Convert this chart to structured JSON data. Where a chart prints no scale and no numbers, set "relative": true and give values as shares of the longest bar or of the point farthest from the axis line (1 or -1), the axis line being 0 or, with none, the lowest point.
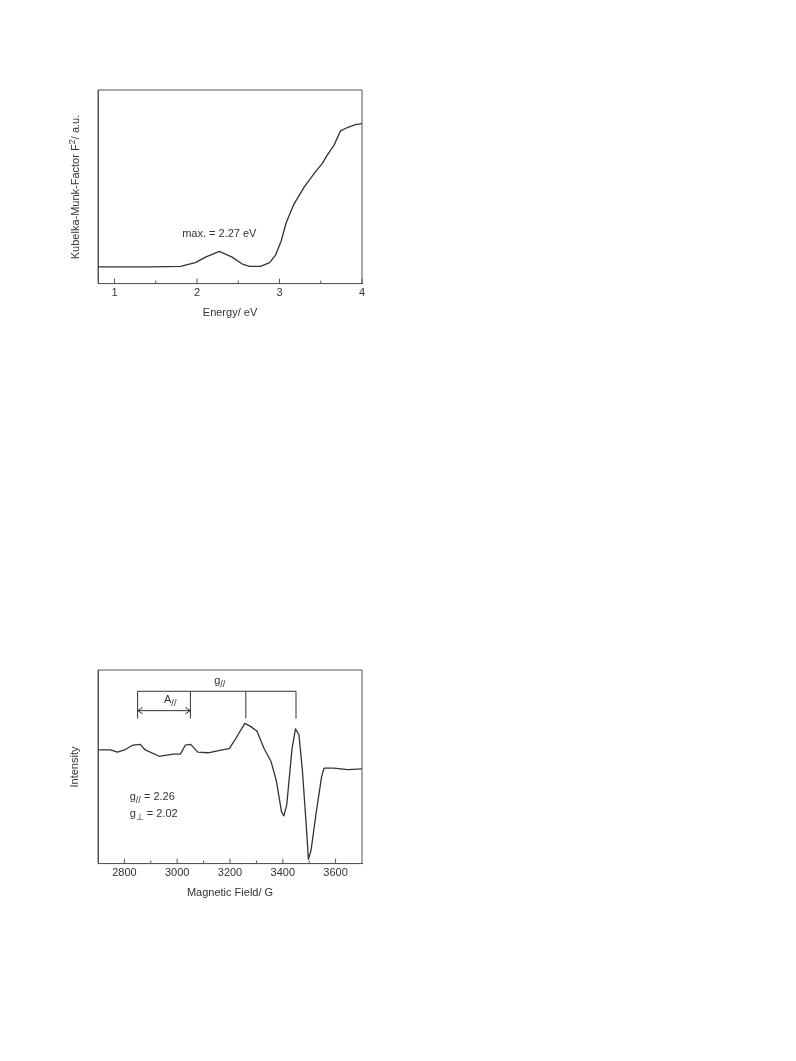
{
  "chart_data": [
    {
      "type": "line",
      "xlabel": "Energy/ eV",
      "ylabel": "Kubelka-Munk-Factor F$^{2}$/ a.u.",
      "relative": true,
      "tick_labels": "x",
      "marker": "none",
      "xlim": [
        0.8,
        4
      ],
      "xticks": [
        1,
        {
          "value": 1.5,
          "label": null
        },
        2,
        {
          "value": 2.5,
          "label": null
        },
        3,
        {
          "value": 3.5,
          "label": null
        },
        4
      ],
      "annotations": [
        {
          "text": "max. = 2.27 eV",
          "x": 2.27,
          "y": 0.201
        }
      ],
      "series": [
        {
          "color": "#333333",
          "x": [
            0.8,
            1.45,
            1.8,
            1.98,
            2.11,
            2.27,
            2.42,
            2.55,
            2.64,
            2.77,
            2.88,
            2.95,
            3.02,
            3.08,
            3.17,
            3.3,
            3.43,
            3.52,
            3.57,
            3.66,
            3.74,
            3.83,
            3.92,
            4.0
          ],
          "values": [
            0.104,
            0.104,
            0.108,
            0.131,
            0.167,
            0.201,
            0.167,
            0.122,
            0.108,
            0.108,
            0.131,
            0.176,
            0.266,
            0.379,
            0.492,
            0.605,
            0.695,
            0.751,
            0.797,
            0.864,
            0.955,
            0.977,
            0.993,
            1.0
          ]
        }
      ]
    },
    {
      "type": "line",
      "xlabel": "Magnetic Field/ G",
      "ylabel": "Intensity",
      "relative": true,
      "tick_labels": "x",
      "marker": "none",
      "xlim": [
        2700,
        3700
      ],
      "xticks": [
        2800,
        {
          "value": 2900,
          "label": null
        },
        3000,
        {
          "value": 3100,
          "label": null
        },
        3200,
        {
          "value": 3300,
          "label": null
        },
        3400,
        {
          "value": 3500,
          "label": null
        },
        3600
      ],
      "annotations": [
        "g$_{//}$",
        "A$_{//}$",
        "g$_{//}$ = 2.26",
        "g$_{⊥}$ = 2.02"
      ],
      "series": [
        {
          "color": "#333333",
          "x": [
            2700,
            2747,
            2774,
            2800,
            2833,
            2860,
            2879,
            2932,
            2985,
            3012,
            3031,
            3051,
            3078,
            3117,
            3170,
            3197,
            3223,
            3256,
            3276,
            3302,
            3329,
            3355,
            3375,
            3395,
            3404,
            3415,
            3435,
            3448,
            3461,
            3474,
            3488,
            3497,
            3507,
            3527,
            3547,
            3556,
            3593,
            3646,
            3700
          ],
          "values": [
            0.81,
            0.81,
            0.795,
            0.81,
            0.845,
            0.85,
            0.81,
            0.765,
            0.78,
            0.78,
            0.845,
            0.85,
            0.795,
            0.79,
            0.81,
            0.82,
            0.895,
            1.0,
            0.98,
            0.945,
            0.82,
            0.73,
            0.595,
            0.37,
            0.34,
            0.42,
            0.82,
            0.96,
            0.92,
            0.67,
            0.295,
            0.03,
            0.095,
            0.37,
            0.62,
            0.68,
            0.68,
            0.67,
            0.675
          ]
        }
      ]
    }
  ]
}
